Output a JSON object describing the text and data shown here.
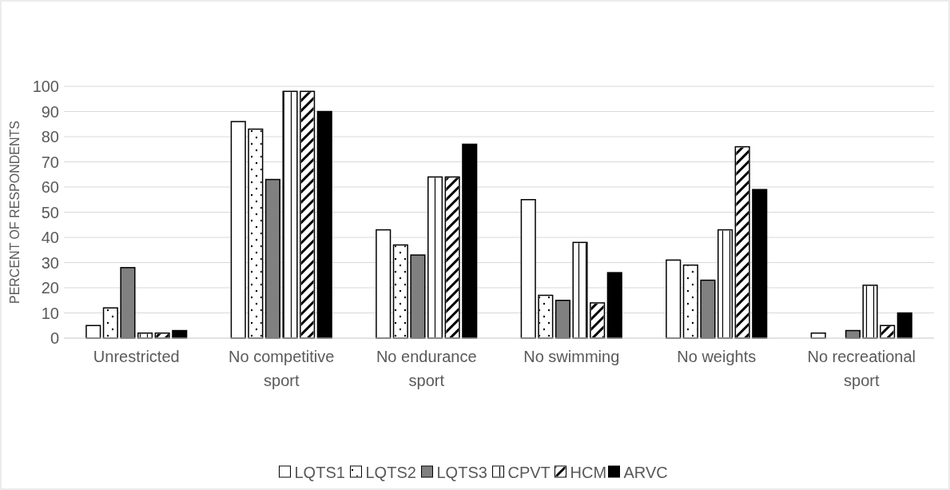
{
  "chart_data": {
    "type": "bar",
    "ylabel": "PERCENT OF RESPONDENTS",
    "categories": [
      "Unrestricted",
      "No competitive sport",
      "No endurance sport",
      "No swimming",
      "No weights",
      "No recreational sport"
    ],
    "series": [
      {
        "name": "LQTS1",
        "color": "#ffffff",
        "values": [
          5,
          86,
          43,
          55,
          31,
          2
        ]
      },
      {
        "name": "LQTS2",
        "color": "#ffffff",
        "values": [
          12,
          83,
          37,
          17,
          29,
          0
        ]
      },
      {
        "name": "LQTS3",
        "color": "#808080",
        "values": [
          28,
          63,
          33,
          15,
          23,
          3
        ]
      },
      {
        "name": "CPVT",
        "color": "#ffffff",
        "values": [
          2,
          98,
          64,
          38,
          43,
          21
        ]
      },
      {
        "name": "HCM",
        "color": "#ffffff",
        "values": [
          2,
          98,
          64,
          14,
          76,
          5
        ]
      },
      {
        "name": "ARVC",
        "color": "#000000",
        "values": [
          3,
          90,
          77,
          26,
          59,
          10
        ]
      }
    ],
    "ylim": [
      0,
      100
    ],
    "yticks": [
      0,
      10,
      20,
      30,
      40,
      50,
      60,
      70,
      80,
      90,
      100
    ],
    "grid": "y",
    "legend": "bottom"
  }
}
